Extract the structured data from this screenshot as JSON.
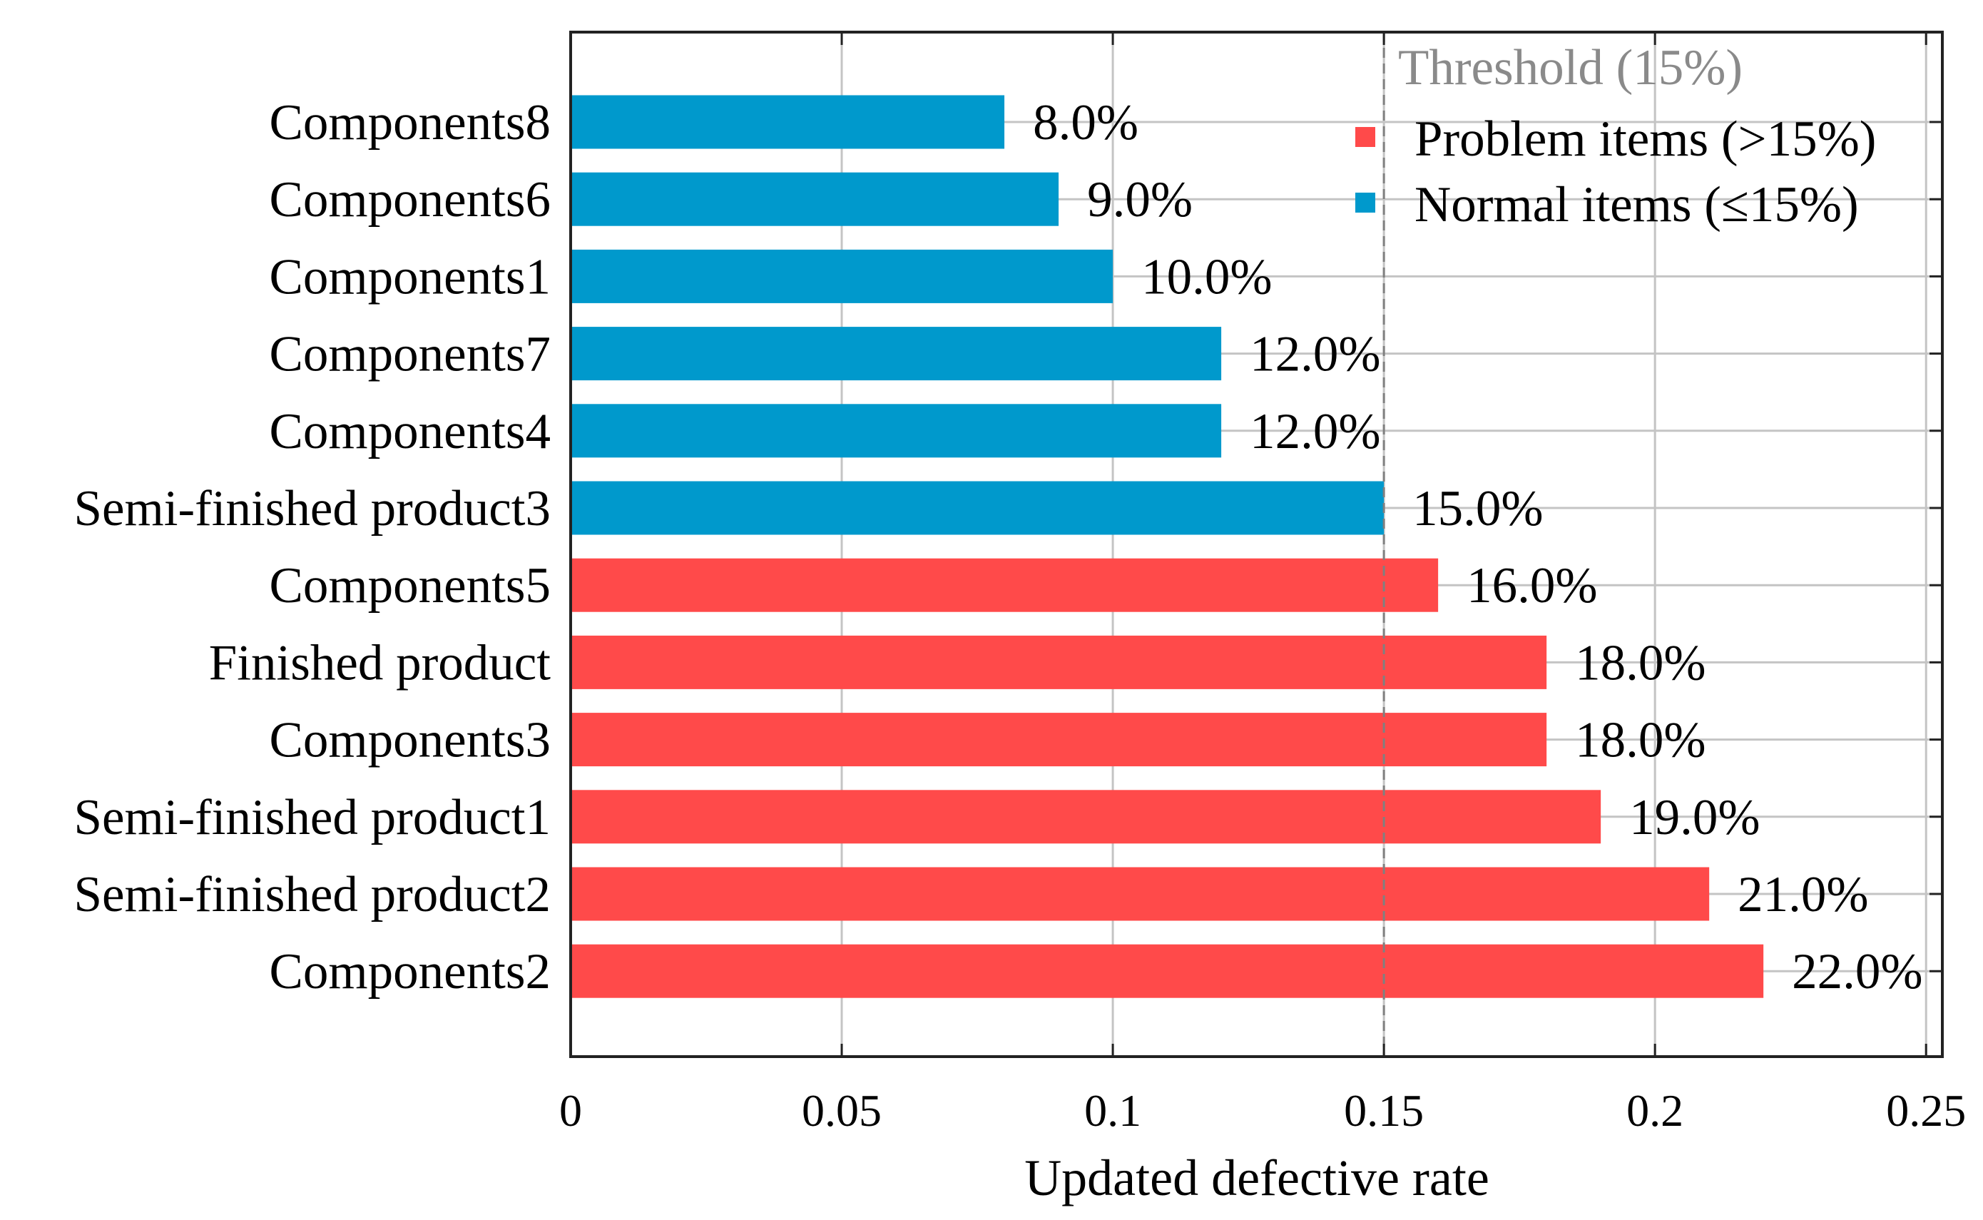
{
  "chart_data": {
    "type": "bar",
    "orientation": "horizontal",
    "categories": [
      "Components8",
      "Components6",
      "Components1",
      "Components7",
      "Components4",
      "Semi-finished product3",
      "Components5",
      "Finished product",
      "Components3",
      "Semi-finished product1",
      "Semi-finished product2",
      "Components2"
    ],
    "values": [
      0.08,
      0.09,
      0.1,
      0.12,
      0.12,
      0.15,
      0.16,
      0.18,
      0.18,
      0.19,
      0.21,
      0.22
    ],
    "data_labels": [
      "8.0%",
      "9.0%",
      "10.0%",
      "12.0%",
      "12.0%",
      "15.0%",
      "16.0%",
      "18.0%",
      "18.0%",
      "19.0%",
      "21.0%",
      "22.0%"
    ],
    "xlabel": "Updated defective rate",
    "ylabel": "",
    "xlim": [
      0,
      0.253
    ],
    "xticks": [
      "0",
      "0.05",
      "0.1",
      "0.15",
      "0.2",
      "0.25"
    ],
    "grid": true,
    "threshold": {
      "value": 0.15,
      "label": "Threshold (15%)",
      "color": "#808080",
      "style": "dashed"
    },
    "legend": {
      "placement": "top-right",
      "entries": [
        {
          "name": "Problem items (>15%)",
          "color": "#FF4A4A"
        },
        {
          "name": "Normal items (≤15%)",
          "color": "#0099CC"
        }
      ]
    }
  }
}
